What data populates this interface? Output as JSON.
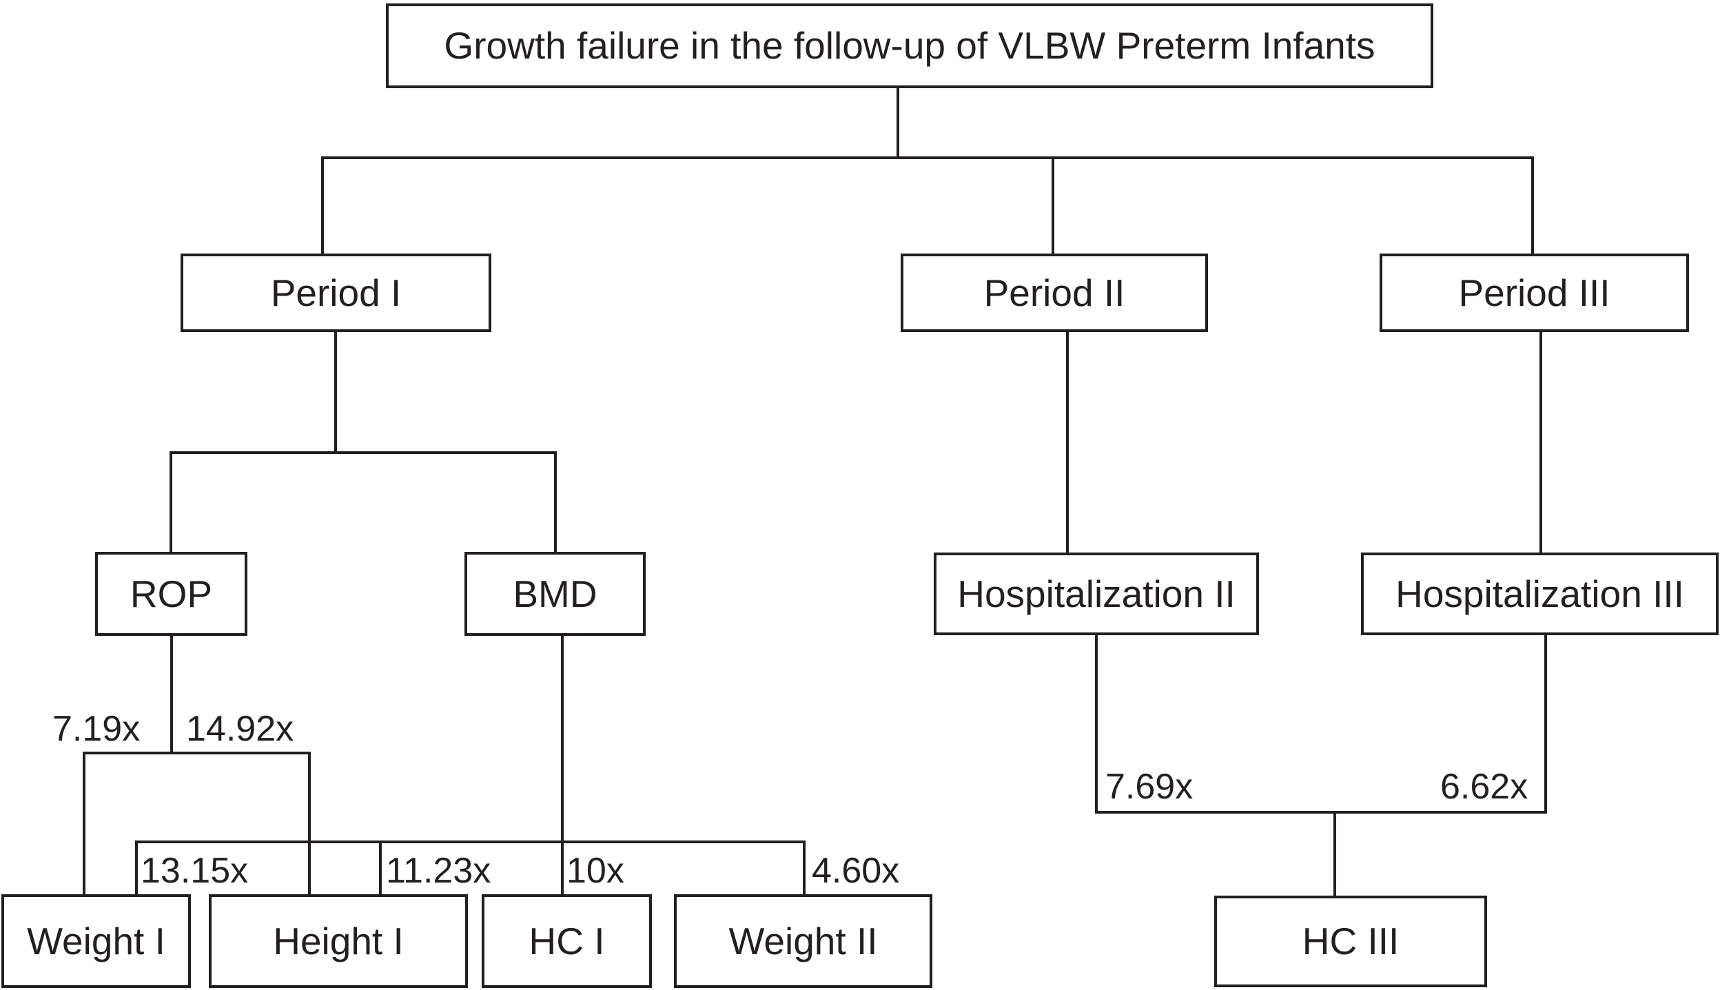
{
  "diagram": {
    "title": "Growth failure in the follow-up of VLBW Preterm Infants",
    "nodes": {
      "period1": "Period I",
      "period2": "Period II",
      "period3": "Period III",
      "rop": "ROP",
      "bmd": "BMD",
      "hospitalization2": "Hospitalization II",
      "hospitalization3": "Hospitalization III",
      "weight1": "Weight I",
      "height1": "Height I",
      "hc1": "HC I",
      "weight2": "Weight II",
      "hc3": "HC III"
    },
    "edge_labels": {
      "rop_weight1": "7.19x",
      "rop_height1": "14.92x",
      "bmd_weight1": "13.15x",
      "bmd_height1": "11.23x",
      "bmd_hc1": "10x",
      "bmd_weight2": "4.60x",
      "hospitalization2_hc3": "7.69x",
      "hospitalization3_hc3": "6.62x"
    },
    "colors": {
      "line": "#231f20",
      "background": "#ffffff"
    }
  }
}
